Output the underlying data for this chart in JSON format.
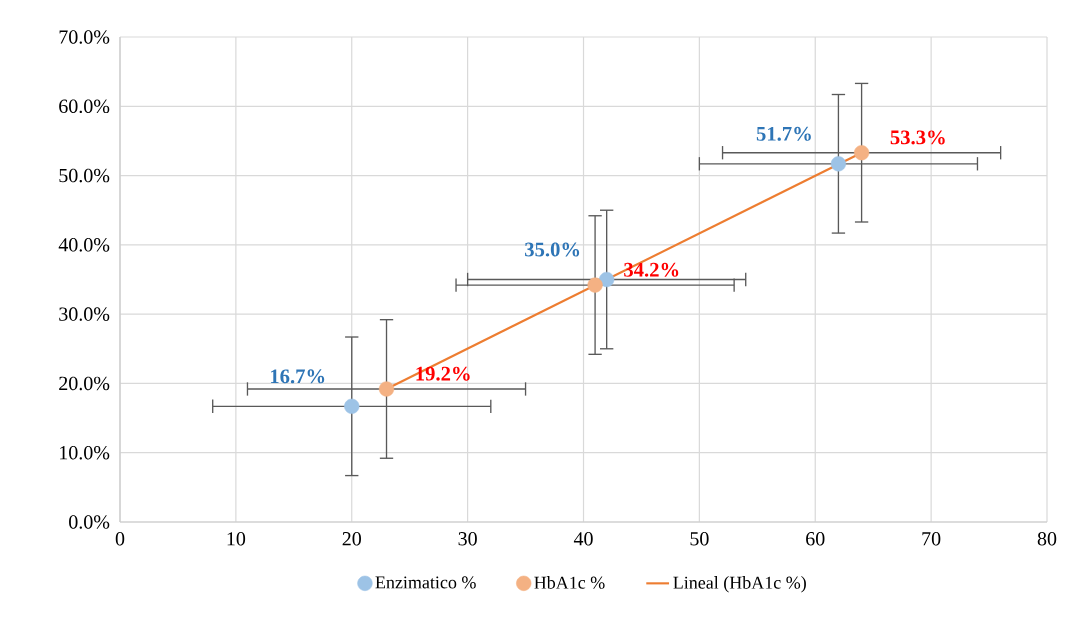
{
  "chart_data": {
    "type": "scatter",
    "xlim": [
      0,
      80
    ],
    "xticks": [
      0,
      10,
      20,
      30,
      40,
      50,
      60,
      70,
      80
    ],
    "ylim": [
      0,
      70
    ],
    "yticks": [
      {
        "value": 0,
        "label": "0.0%"
      },
      {
        "value": 10,
        "label": "10.0%"
      },
      {
        "value": 20,
        "label": "20.0%"
      },
      {
        "value": 30,
        "label": "30.0%"
      },
      {
        "value": 40,
        "label": "40.0%"
      },
      {
        "value": 50,
        "label": "50.0%"
      },
      {
        "value": 60,
        "label": "60.0%"
      },
      {
        "value": 70,
        "label": "70.0%"
      }
    ],
    "grid": true,
    "legend": "bottom",
    "series": [
      {
        "name": "Enzimatico %",
        "color": "#9dc3e6",
        "marker": "circle",
        "x": [
          20,
          42,
          62
        ],
        "values": [
          16.7,
          35.0,
          51.7
        ],
        "errors": [
          10,
          10,
          10
        ],
        "xerrors": [
          12,
          12,
          12
        ],
        "value_labels": [
          "16.7%",
          "35.0%",
          "51.7%"
        ]
      },
      {
        "name": "HbA1c %",
        "color": "#f4b183",
        "marker": "circle",
        "x": [
          23,
          41,
          64
        ],
        "values": [
          19.2,
          34.2,
          53.3
        ],
        "errors": [
          10,
          10,
          10
        ],
        "xerrors": [
          12,
          12,
          12
        ],
        "value_labels": [
          "19.2%",
          "34.2%",
          "53.3%"
        ]
      },
      {
        "name": "Lineal (HbA1c %)",
        "type": "line",
        "marker": "none",
        "color": "#ed7d31",
        "x": [
          23,
          64
        ],
        "values": [
          19.2,
          53.3
        ]
      }
    ]
  }
}
